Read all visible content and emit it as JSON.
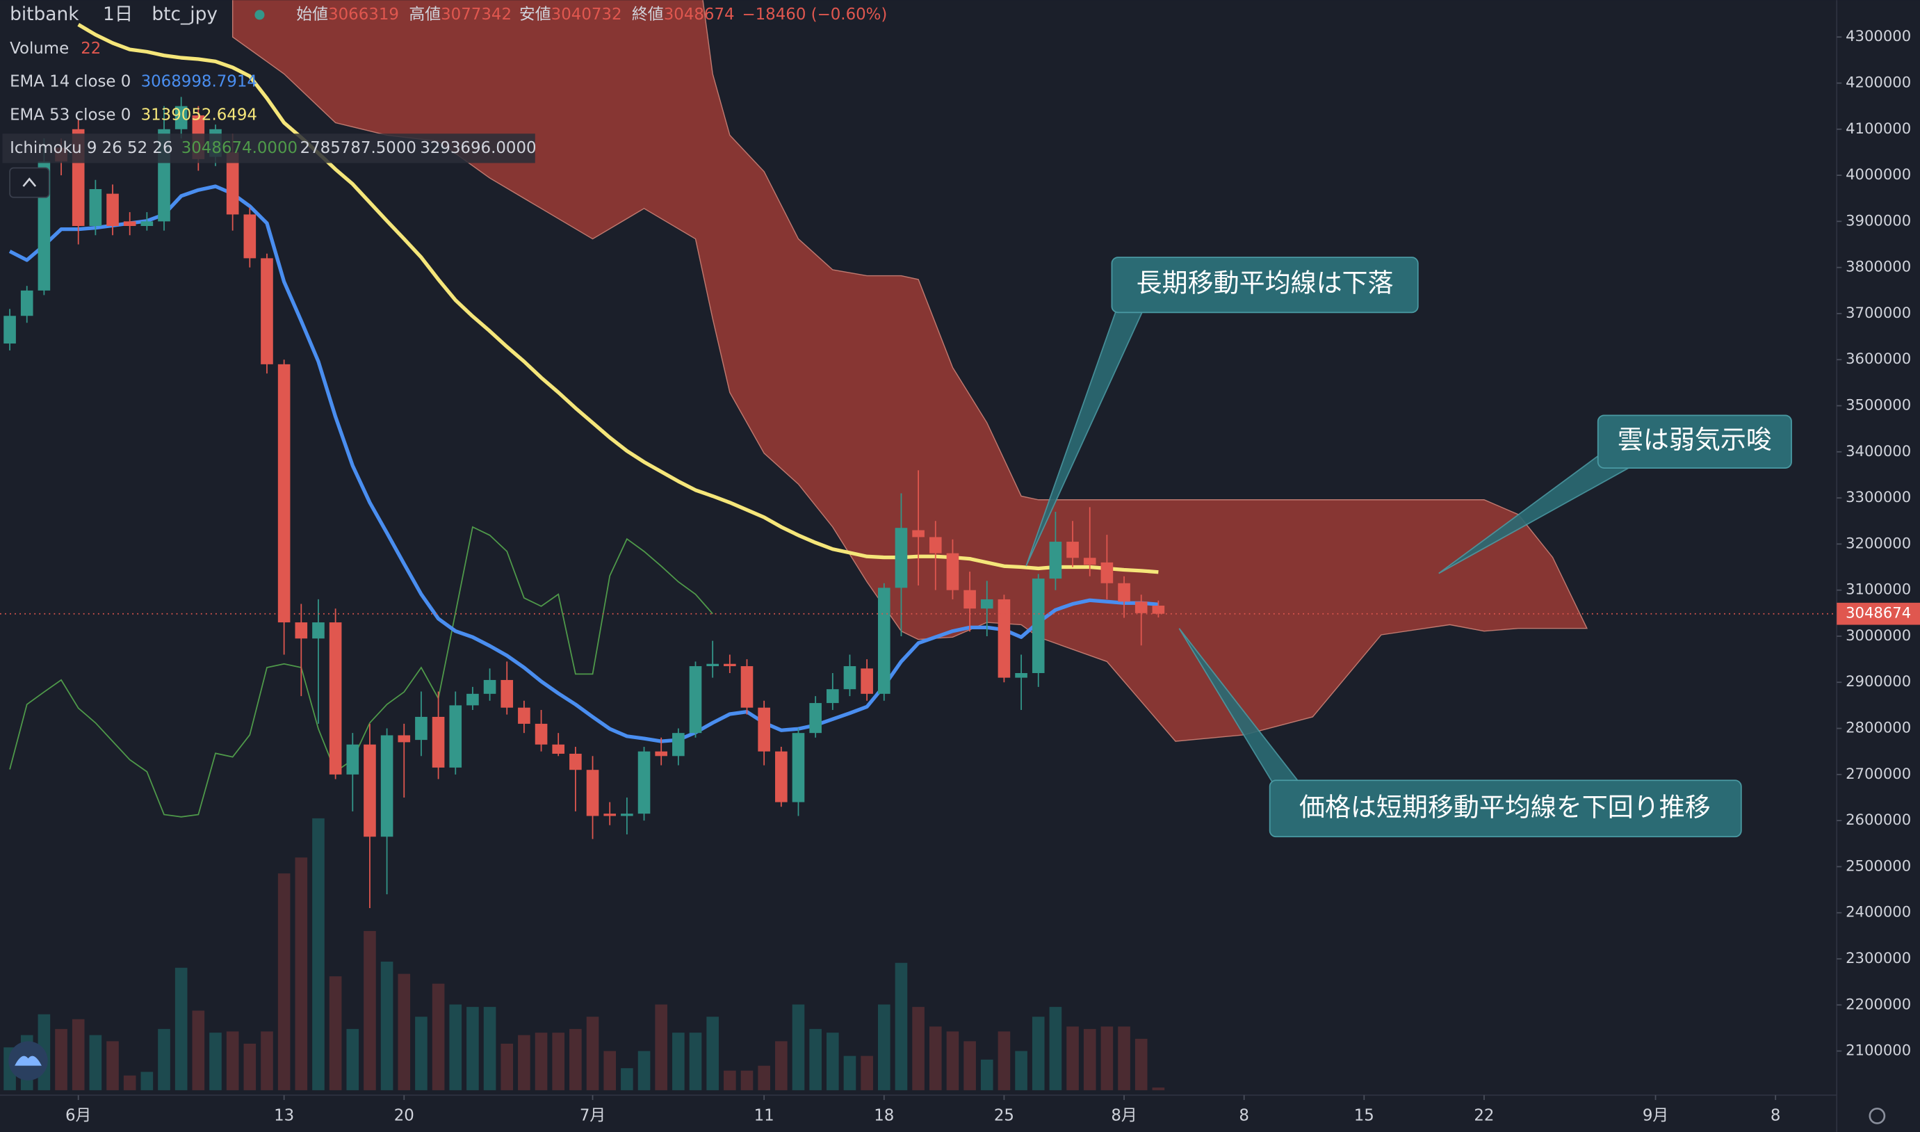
{
  "chart_data": {
    "type": "candlestick",
    "symbol": "bitbank",
    "interval": "1日",
    "pair": "btc_jpy",
    "ohlc_labels": [
      "始値",
      "高値",
      "安値",
      "終値"
    ],
    "change": "−18460 (−0.60%)",
    "up_color": "#33978a",
    "down_color": "#e0574f",
    "x": [
      -4,
      -3,
      -2,
      -1,
      0,
      1,
      2,
      3,
      4,
      5,
      6,
      7,
      8,
      9,
      10,
      11,
      12,
      13,
      14,
      15,
      16,
      17,
      18,
      19,
      20,
      21,
      22,
      23,
      24,
      25,
      26,
      27,
      28,
      29,
      30,
      31,
      32,
      33,
      34,
      35,
      36,
      37,
      38,
      39,
      40,
      41,
      42,
      43,
      44,
      45,
      46,
      47,
      48,
      49,
      50,
      51,
      52,
      53,
      54,
      55,
      56,
      57,
      58,
      59,
      60,
      61,
      62,
      63
    ],
    "open": [
      3635000,
      3695000,
      3750000,
      4060000,
      4100000,
      3890000,
      3960000,
      3900000,
      3890000,
      3900000,
      4100000,
      4130000,
      4040000,
      4050000,
      3915000,
      3820000,
      3590000,
      3030000,
      2995000,
      3030000,
      2700000,
      2765000,
      2565000,
      2785000,
      2775000,
      2825000,
      2715000,
      2850000,
      2875000,
      2905000,
      2845000,
      2810000,
      2765000,
      2745000,
      2710000,
      2615000,
      2610000,
      2615000,
      2750000,
      2740000,
      2790000,
      2935000,
      2940000,
      2935000,
      2845000,
      2750000,
      2640000,
      2790000,
      2855000,
      2885000,
      2930000,
      2875000,
      3105000,
      3230000,
      3215000,
      3180000,
      3100000,
      3060000,
      3080000,
      2910000,
      2920000,
      3125000,
      3205000,
      3170000,
      3160000,
      3115000,
      3075000,
      3066319
    ],
    "high": [
      3710000,
      3760000,
      4080000,
      4080000,
      4120000,
      3990000,
      3980000,
      3920000,
      3920000,
      4150000,
      4170000,
      4150000,
      4110000,
      4090000,
      3930000,
      3830000,
      3600000,
      3070000,
      3080000,
      3060000,
      2790000,
      2810000,
      2800000,
      2810000,
      2880000,
      2880000,
      2880000,
      2890000,
      2930000,
      2945000,
      2860000,
      2840000,
      2790000,
      2760000,
      2740000,
      2640000,
      2650000,
      2760000,
      2780000,
      2800000,
      2945000,
      2990000,
      2960000,
      2950000,
      2860000,
      2760000,
      2800000,
      2870000,
      2920000,
      2960000,
      2950000,
      3115000,
      3310000,
      3360000,
      3250000,
      3210000,
      3140000,
      3120000,
      3090000,
      2960000,
      3135000,
      3270000,
      3250000,
      3280000,
      3220000,
      3130000,
      3090000,
      3077342
    ],
    "low": [
      3620000,
      3680000,
      3740000,
      4000000,
      3850000,
      3870000,
      3870000,
      3870000,
      3880000,
      3880000,
      4080000,
      4010000,
      4020000,
      3880000,
      3800000,
      3570000,
      2960000,
      2870000,
      2810000,
      2690000,
      2620000,
      2410000,
      2440000,
      2650000,
      2740000,
      2690000,
      2700000,
      2840000,
      2860000,
      2830000,
      2790000,
      2750000,
      2740000,
      2620000,
      2560000,
      2590000,
      2570000,
      2600000,
      2720000,
      2720000,
      2780000,
      2910000,
      2920000,
      2830000,
      2720000,
      2630000,
      2610000,
      2780000,
      2840000,
      2870000,
      2860000,
      2860000,
      3000000,
      3110000,
      3100000,
      3080000,
      3010000,
      3000000,
      2900000,
      2840000,
      2890000,
      3100000,
      3150000,
      3130000,
      3080000,
      3040000,
      2980000,
      3040732
    ],
    "close": [
      3695000,
      3750000,
      4030000,
      4030000,
      3890000,
      3970000,
      3890000,
      3890000,
      3900000,
      4100000,
      4150000,
      4035000,
      4100000,
      3915000,
      3820000,
      3590000,
      3030000,
      2995000,
      3030000,
      2700000,
      2765000,
      2565000,
      2785000,
      2770000,
      2825000,
      2715000,
      2850000,
      2875000,
      2905000,
      2845000,
      2810000,
      2765000,
      2745000,
      2710000,
      2610000,
      2610000,
      2615000,
      2750000,
      2740000,
      2790000,
      2935000,
      2940000,
      2935000,
      2845000,
      2750000,
      2640000,
      2790000,
      2855000,
      2885000,
      2935000,
      2875000,
      3105000,
      3235000,
      3215000,
      3180000,
      3100000,
      3060000,
      3080000,
      2910000,
      2920000,
      3125000,
      3205000,
      3170000,
      3155000,
      3115000,
      3075000,
      3050000,
      3048674
    ],
    "volume": {
      "label": "Volume",
      "up_color": "#1d4a4f",
      "down_color": "#4b2b31",
      "vlim": [
        0,
        8900
      ],
      "values": [
        350,
        450,
        620,
        500,
        580,
        450,
        400,
        120,
        150,
        500,
        1000,
        650,
        470,
        480,
        380,
        480,
        1770,
        1900,
        2220,
        930,
        500,
        1300,
        1050,
        950,
        600,
        870,
        700,
        680,
        680,
        380,
        450,
        470,
        470,
        500,
        600,
        320,
        180,
        320,
        700,
        470,
        470,
        600,
        160,
        160,
        200,
        400,
        700,
        500,
        470,
        280,
        280,
        700,
        1040,
        680,
        520,
        480,
        400,
        250,
        480,
        320,
        600,
        680,
        520,
        500,
        520,
        520,
        420,
        22
      ]
    },
    "ema14": {
      "label": "EMA 14 close 0",
      "color": "#4a8ef0",
      "x": [
        -4,
        -3,
        -2,
        -1,
        0,
        1,
        2,
        3,
        4,
        5,
        6,
        7,
        8,
        9,
        10,
        11,
        12,
        13,
        14,
        15,
        16,
        17,
        18,
        19,
        20,
        21,
        22,
        23,
        24,
        25,
        26,
        27,
        28,
        29,
        30,
        31,
        32,
        33,
        34,
        35,
        36,
        37,
        38,
        39,
        40,
        41,
        42,
        43,
        44,
        45,
        46,
        47,
        48,
        49,
        50,
        51,
        52,
        53,
        54,
        55,
        56,
        57,
        58,
        59,
        60,
        61,
        62,
        63
      ],
      "values": [
        3835000,
        3816000,
        3848000,
        3883000,
        3883000,
        3886000,
        3891000,
        3896000,
        3901000,
        3915000,
        3955000,
        3968000,
        3976000,
        3960000,
        3933000,
        3896000,
        3769000,
        3684000,
        3596000,
        3476000,
        3370000,
        3290000,
        3224000,
        3157000,
        3091000,
        3038000,
        3011000,
        2998000,
        2979000,
        2958000,
        2932000,
        2902000,
        2876000,
        2852000,
        2825000,
        2799000,
        2783000,
        2778000,
        2772000,
        2775000,
        2791000,
        2812000,
        2831000,
        2836000,
        2812000,
        2796000,
        2799000,
        2807000,
        2820000,
        2833000,
        2847000,
        2892000,
        2945000,
        2985000,
        2998000,
        3011000,
        3019000,
        3019000,
        3014000,
        2998000,
        3030000,
        3057000,
        3070000,
        3078000,
        3075000,
        3072000,
        3072000,
        3068998.7914
      ]
    },
    "ema53": {
      "label": "EMA 53 close 0",
      "color": "#f5e67a",
      "x": [
        0,
        1,
        2,
        3,
        4,
        5,
        6,
        7,
        8,
        9,
        10,
        11,
        12,
        13,
        14,
        15,
        16,
        17,
        18,
        19,
        20,
        21,
        22,
        23,
        24,
        25,
        26,
        27,
        28,
        29,
        30,
        31,
        32,
        33,
        34,
        35,
        36,
        37,
        38,
        39,
        40,
        41,
        42,
        43,
        44,
        45,
        46,
        47,
        48,
        49,
        50,
        51,
        52,
        53,
        54,
        55,
        56,
        57,
        58,
        59,
        60,
        61,
        62,
        63
      ],
      "values": [
        4327000,
        4305000,
        4287000,
        4273000,
        4268000,
        4260000,
        4255000,
        4252000,
        4247000,
        4234000,
        4215000,
        4167000,
        4114000,
        4082000,
        4048000,
        4013000,
        3981000,
        3941000,
        3901000,
        3862000,
        3822000,
        3774000,
        3729000,
        3694000,
        3662000,
        3628000,
        3596000,
        3561000,
        3529000,
        3495000,
        3463000,
        3431000,
        3402000,
        3378000,
        3357000,
        3336000,
        3317000,
        3304000,
        3290000,
        3274000,
        3258000,
        3237000,
        3219000,
        3203000,
        3189000,
        3181000,
        3173000,
        3171000,
        3171000,
        3173000,
        3173000,
        3171000,
        3168000,
        3160000,
        3152000,
        3150000,
        3147000,
        3150000,
        3150000,
        3150000,
        3147000,
        3144000,
        3142000,
        3139052.6494
      ]
    },
    "ichimoku": {
      "label": "Ichimoku 9 26 52 26",
      "values_text": [
        "3048674.0000",
        "2785787.5000",
        "3293696.0000"
      ],
      "lagging": {
        "color": "#4f9a4a",
        "x": [
          -4,
          -3,
          -2,
          -1,
          0,
          1,
          2,
          3,
          4,
          5,
          6,
          7,
          8,
          9,
          10,
          11,
          12,
          13,
          14,
          15,
          16,
          17,
          18,
          19,
          20,
          21,
          22,
          23,
          24,
          25,
          26,
          27,
          28,
          29,
          30,
          31,
          32,
          33,
          34,
          35,
          36,
          37
        ],
        "values": [
          2711000,
          2852000,
          2879000,
          2905000,
          2844000,
          2812000,
          2772000,
          2732000,
          2706000,
          2613000,
          2608000,
          2613000,
          2746000,
          2738000,
          2786000,
          2932000,
          2940000,
          2932000,
          2799000,
          2706000,
          2732000,
          2812000,
          2852000,
          2879000,
          2932000,
          2865000,
          3051000,
          3237000,
          3219000,
          3184000,
          3083000,
          3065000,
          3091000,
          2918000,
          2918000,
          3131000,
          3211000,
          3184000,
          3152000,
          3118000,
          3091000,
          3048674
        ]
      },
      "cloud": {
        "color": "#9a3b35",
        "x": [
          9,
          12,
          15,
          18,
          21,
          24,
          27,
          30,
          33,
          36,
          37,
          38,
          40,
          42,
          44,
          46,
          48,
          49,
          51,
          53,
          55,
          56,
          60,
          64,
          68,
          72,
          76,
          80,
          82,
          84,
          86,
          88
        ],
        "upper": [
          4500000,
          4500000,
          4500000,
          4500000,
          4500000,
          4500000,
          4500000,
          4500000,
          4500000,
          4500000,
          4220000,
          4087000,
          4008000,
          3862000,
          3795000,
          3782000,
          3782000,
          3774000,
          3583000,
          3463000,
          3304000,
          3296000,
          3296000,
          3296000,
          3296000,
          3296000,
          3296000,
          3296000,
          3296000,
          3264000,
          3171000,
          3017000
        ],
        "lower": [
          4300000,
          4220000,
          4114000,
          4087000,
          4074000,
          3994000,
          3928000,
          3862000,
          3928000,
          3862000,
          3689000,
          3529000,
          3397000,
          3330000,
          3237000,
          3118000,
          3011000,
          2993000,
          2998000,
          3030000,
          3025000,
          2998000,
          2945000,
          2772000,
          2786000,
          2825000,
          3003000,
          3025000,
          3011000,
          3017000,
          3017000,
          3017000
        ]
      }
    },
    "xlim": [
      -4.57,
      102.57
    ],
    "xticks": [
      {
        "value": 0,
        "label": "6月"
      },
      {
        "value": 12,
        "label": "13"
      },
      {
        "value": 19,
        "label": "20"
      },
      {
        "value": 30,
        "label": "7月"
      },
      {
        "value": 40,
        "label": "11"
      },
      {
        "value": 47,
        "label": "18"
      },
      {
        "value": 54,
        "label": "25"
      },
      {
        "value": 61,
        "label": "8月"
      },
      {
        "value": 68,
        "label": "8"
      },
      {
        "value": 75,
        "label": "15"
      },
      {
        "value": 82,
        "label": "22"
      },
      {
        "value": 92,
        "label": "9月"
      },
      {
        "value": 99,
        "label": "8"
      }
    ],
    "ylim": [
      2007000,
      4380000
    ],
    "yticks": [
      2100000,
      2200000,
      2300000,
      2400000,
      2500000,
      2600000,
      2700000,
      2800000,
      2900000,
      3000000,
      3100000,
      3200000,
      3300000,
      3400000,
      3500000,
      3600000,
      3700000,
      3800000,
      3900000,
      4000000,
      4100000,
      4200000,
      4300000
    ],
    "annotations": [
      "長期移動平均線は下落",
      "雲は弱気示唆",
      "価格は短期移動平均線を下回り推移"
    ]
  }
}
